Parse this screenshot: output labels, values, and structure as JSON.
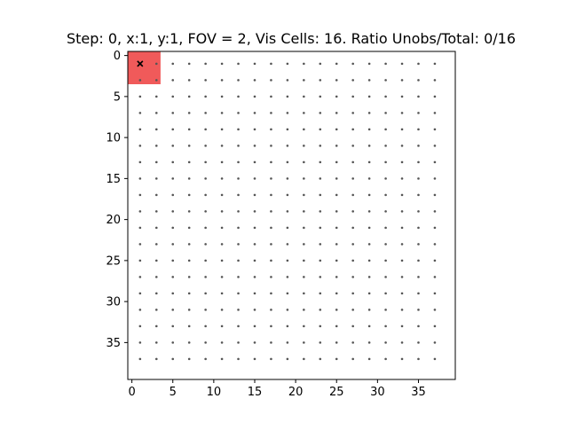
{
  "chart_data": {
    "type": "scatter",
    "title": "Step: 0, x:1, y:1, FOV = 2, Vis Cells: 16. Ratio Unobs/Total: 0/16",
    "xlabel": "",
    "ylabel": "",
    "xlim": [
      -0.5,
      39.5
    ],
    "ylim": [
      39.5,
      -0.5
    ],
    "y_inverted": true,
    "grid": false,
    "x_ticks": [
      0,
      5,
      10,
      15,
      20,
      25,
      30,
      35
    ],
    "y_ticks": [
      0,
      5,
      10,
      15,
      20,
      25,
      30,
      35
    ],
    "grid_points": {
      "x_values": [
        1,
        3,
        5,
        7,
        9,
        11,
        13,
        15,
        17,
        19,
        21,
        23,
        25,
        27,
        29,
        31,
        33,
        35,
        37
      ],
      "y_values": [
        1,
        3,
        5,
        7,
        9,
        11,
        13,
        15,
        17,
        19,
        21,
        23,
        25,
        27,
        29,
        31,
        33,
        35,
        37
      ],
      "color": "#555555"
    },
    "visible_region": {
      "x_range": [
        -0.5,
        3.5
      ],
      "y_range": [
        -0.5,
        3.5
      ],
      "color": "#f05a5a"
    },
    "agent": {
      "x": 1,
      "y": 1,
      "marker": "x",
      "color": "#000000"
    }
  }
}
